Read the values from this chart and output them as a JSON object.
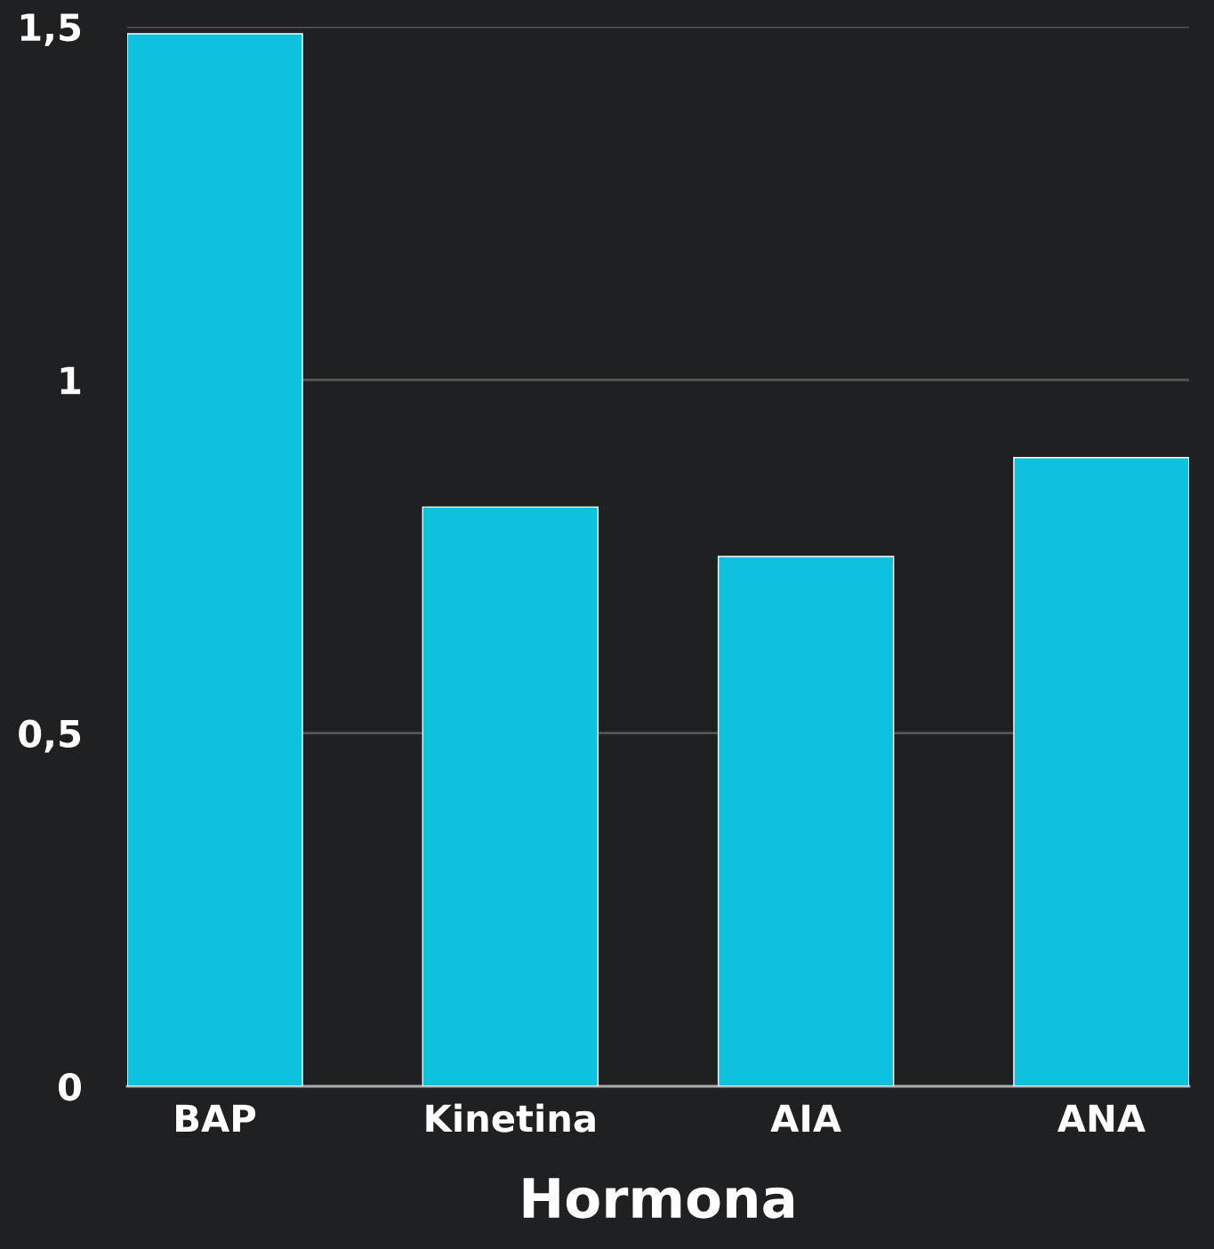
{
  "chart_data": {
    "type": "bar",
    "xlabel": "Hormona",
    "categories": [
      "BAP",
      "Kinetina",
      "AIA",
      "ANA"
    ],
    "values": [
      1.49,
      0.82,
      0.75,
      0.89
    ],
    "color": "#0ec1df",
    "ylim": [
      0,
      1.5
    ],
    "yticks": [
      0,
      {
        "value": 0.5,
        "label": "0,5"
      },
      1,
      {
        "value": 1.5,
        "label": "1,5"
      }
    ],
    "grid": "y"
  }
}
